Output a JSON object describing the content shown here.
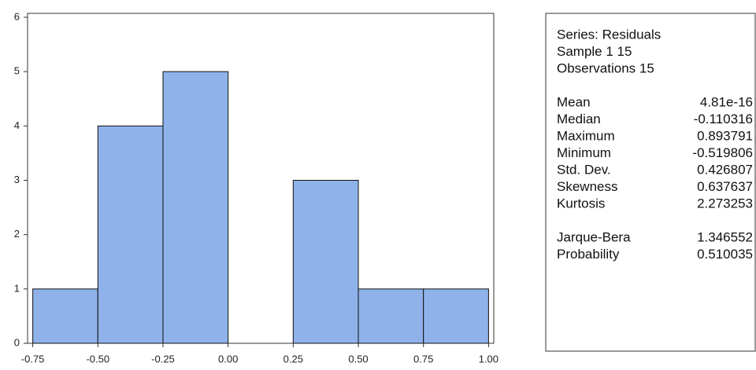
{
  "chart_data": {
    "type": "histogram",
    "bins": [
      -0.75,
      -0.5,
      -0.25,
      0,
      0.25,
      0.5,
      0.75,
      1.0
    ],
    "counts": [
      1,
      4,
      5,
      0,
      3,
      1,
      1
    ],
    "color": "#8fb2ea",
    "xlim": [
      -0.77,
      1.02
    ],
    "xticks": [
      {
        "value": -0.75,
        "label": "-0.75"
      },
      {
        "value": -0.5,
        "label": "-0.50"
      },
      {
        "value": -0.25,
        "label": "-0.25"
      },
      {
        "value": 0,
        "label": "0.00"
      },
      {
        "value": 0.25,
        "label": "0.25"
      },
      {
        "value": 0.5,
        "label": "0.50"
      },
      {
        "value": 0.75,
        "label": "0.75"
      },
      {
        "value": 1.0,
        "label": "1.00"
      }
    ],
    "ylim": [
      0,
      6
    ],
    "yticks": [
      0,
      1,
      2,
      3,
      4,
      5,
      6
    ]
  },
  "stats_box": {
    "header": [
      "Series: Residuals",
      "Sample 1 15",
      "Observations 15"
    ],
    "rows": [
      [
        "Mean",
        "4.81e-16"
      ],
      [
        "Median",
        "-0.110316"
      ],
      [
        "Maximum",
        "0.893791"
      ],
      [
        "Minimum",
        "-0.519806"
      ],
      [
        "Std. Dev.",
        "0.426807"
      ],
      [
        "Skewness",
        "0.637637"
      ],
      [
        "Kurtosis",
        "2.273253"
      ]
    ],
    "test_rows": [
      [
        "Jarque-Bera",
        "1.346552"
      ],
      [
        "Probability",
        "0.510035"
      ]
    ]
  }
}
